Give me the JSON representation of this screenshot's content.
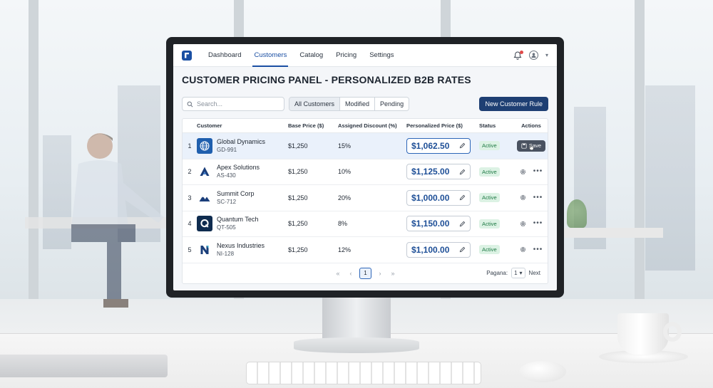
{
  "app": {
    "nav": [
      {
        "label": "Dashboard"
      },
      {
        "label": "Customers"
      },
      {
        "label": "Catalog"
      },
      {
        "label": "Pricing"
      },
      {
        "label": "Settings"
      }
    ],
    "active_nav": "Customers"
  },
  "page": {
    "title": "CUSTOMER PRICING PANEL - PERSONALIZED B2B RATES"
  },
  "toolbar": {
    "search_placeholder": "Search...",
    "filters": [
      "All Customers",
      "Modified",
      "Pending"
    ],
    "active_filter": "All Customers",
    "new_rule_label": "New Customer Rule"
  },
  "table": {
    "headers": {
      "customer": "Customer",
      "base": "Base Price ($)",
      "discount": "Assigned Discount (%)",
      "personalized": "Personalized Price ($)",
      "status": "Status",
      "actions": "Actions"
    },
    "rows": [
      {
        "num": "1",
        "name": "Global Dynamics",
        "code": "GD-991",
        "base": "$1,250",
        "discount": "15%",
        "price": "$1,062.50",
        "status": "Active",
        "logo_icon": "globe-icon",
        "logo_color": "#1f5fae"
      },
      {
        "num": "2",
        "name": "Apex Solutions",
        "code": "AS-430",
        "base": "$1,250",
        "discount": "10%",
        "price": "$1,125.00",
        "status": "Active",
        "logo_icon": "apex-triangle-icon",
        "logo_color": "#1a3e7a"
      },
      {
        "num": "3",
        "name": "Summit Corp",
        "code": "SC-712",
        "base": "$1,250",
        "discount": "20%",
        "price": "$1,000.00",
        "status": "Active",
        "logo_icon": "mountain-icon",
        "logo_color": "#1a3e7a"
      },
      {
        "num": "4",
        "name": "Quantum Tech",
        "code": "QT-505",
        "base": "$1,250",
        "discount": "8%",
        "price": "$1,150.00",
        "status": "Active",
        "logo_icon": "q-letter-icon",
        "logo_color": "#0f2c4f"
      },
      {
        "num": "5",
        "name": "Nexus Industries",
        "code": "NI-128",
        "base": "$1,250",
        "discount": "12%",
        "price": "$1,100.00",
        "status": "Active",
        "logo_icon": "n-letter-icon",
        "logo_color": "#1a3e7a"
      }
    ],
    "save_label": "Save"
  },
  "pagination": {
    "current_page": "1",
    "per_page_label": "Pagana:",
    "per_page_value": "1",
    "next_label": "Next"
  },
  "colors": {
    "primary": "#1e3f73",
    "accent": "#1a4fa3",
    "price_text": "#1e4f97",
    "status_green": "#1f7a45"
  }
}
